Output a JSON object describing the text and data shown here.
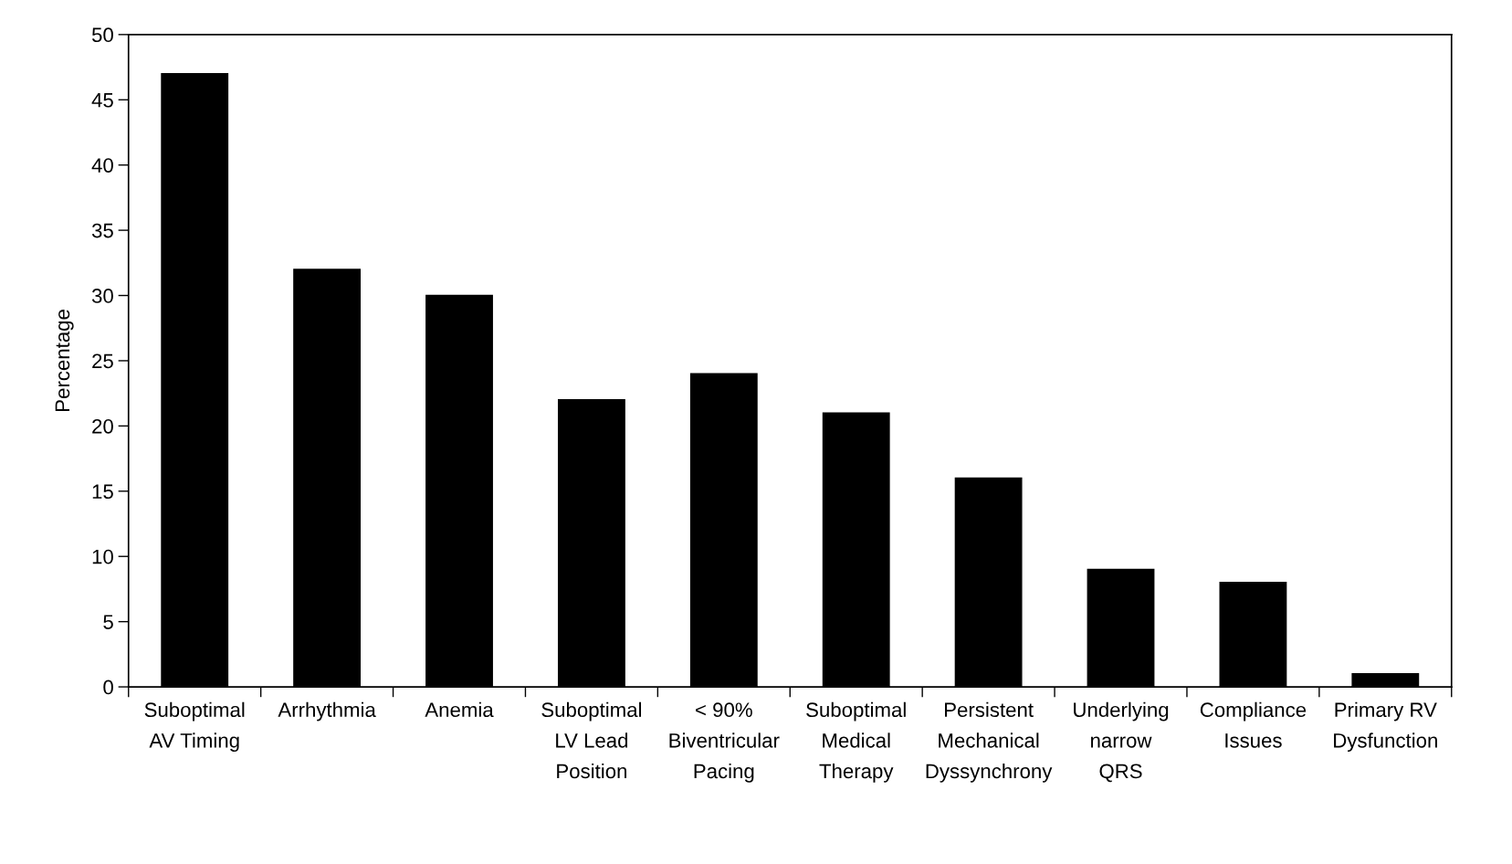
{
  "chart_data": {
    "type": "bar",
    "ylabel": "Percentage",
    "categories": [
      "Suboptimal\nAV Timing",
      "Arrhythmia",
      "Anemia",
      "Suboptimal\nLV Lead\nPosition",
      "< 90%\nBiventricular\nPacing",
      "Suboptimal\nMedical\nTherapy",
      "Persistent\nMechanical\nDyssynchrony",
      "Underlying\nnarrow\nQRS",
      "Compliance\nIssues",
      "Primary RV\nDysfunction"
    ],
    "values": [
      47,
      32,
      30,
      22,
      24,
      21,
      16,
      9,
      8,
      1
    ],
    "color": "#000000",
    "ylim": [
      0,
      50
    ],
    "yticks": [
      0,
      5,
      10,
      15,
      20,
      25,
      30,
      35,
      40,
      45,
      50
    ],
    "grid": false
  }
}
